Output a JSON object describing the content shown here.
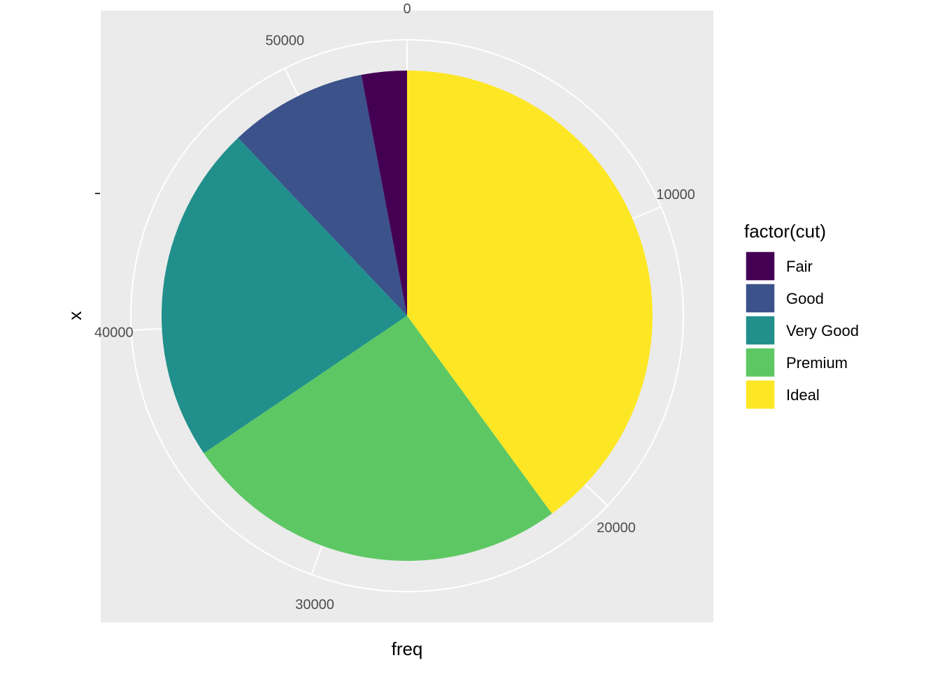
{
  "chart_data": {
    "type": "pie",
    "xlabel": "freq",
    "ylabel": "x",
    "theta_ticks": [
      0,
      10000,
      20000,
      30000,
      40000,
      50000
    ],
    "theta_tick_labels": [
      "0",
      "10000",
      "20000",
      "30000",
      "40000",
      "50000"
    ],
    "theta_range": [
      0,
      53940
    ],
    "legend": {
      "title": "factor(cut)",
      "position": "right"
    },
    "slices": [
      {
        "label": "Fair",
        "value": 1610,
        "color": "#440154"
      },
      {
        "label": "Good",
        "value": 4906,
        "color": "#3b528b"
      },
      {
        "label": "Very Good",
        "value": 12082,
        "color": "#21908c"
      },
      {
        "label": "Premium",
        "value": 13791,
        "color": "#5dc863"
      },
      {
        "label": "Ideal",
        "value": 21551,
        "color": "#fde725"
      }
    ],
    "grid": true,
    "panel_background": "#ebebeb",
    "grid_color": "#ffffff"
  }
}
